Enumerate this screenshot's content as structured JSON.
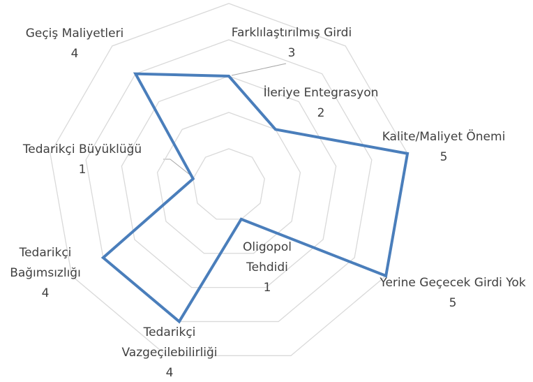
{
  "chart_data": {
    "type": "radar",
    "categories": [
      "Farklılaştırılmış Girdi",
      "İleriye Entegrasyon",
      "Kalite/Maliyet Önemi",
      "Yerine Geçecek Girdi Yok",
      "Oligopol Tehdidi",
      "Tedarikçi Vazgeçilebilirliği",
      "Tedarikçi Bağımsızlığı",
      "Tedarikçi Büyüklüğü",
      "Geçiş Maliyetleri"
    ],
    "values": [
      3,
      2,
      5,
      5,
      1,
      4,
      4,
      1,
      4
    ],
    "color": "#4a7ebb",
    "ylim": [
      0,
      5
    ],
    "yticks": [
      1,
      2,
      3,
      4,
      5
    ],
    "grid": true
  }
}
